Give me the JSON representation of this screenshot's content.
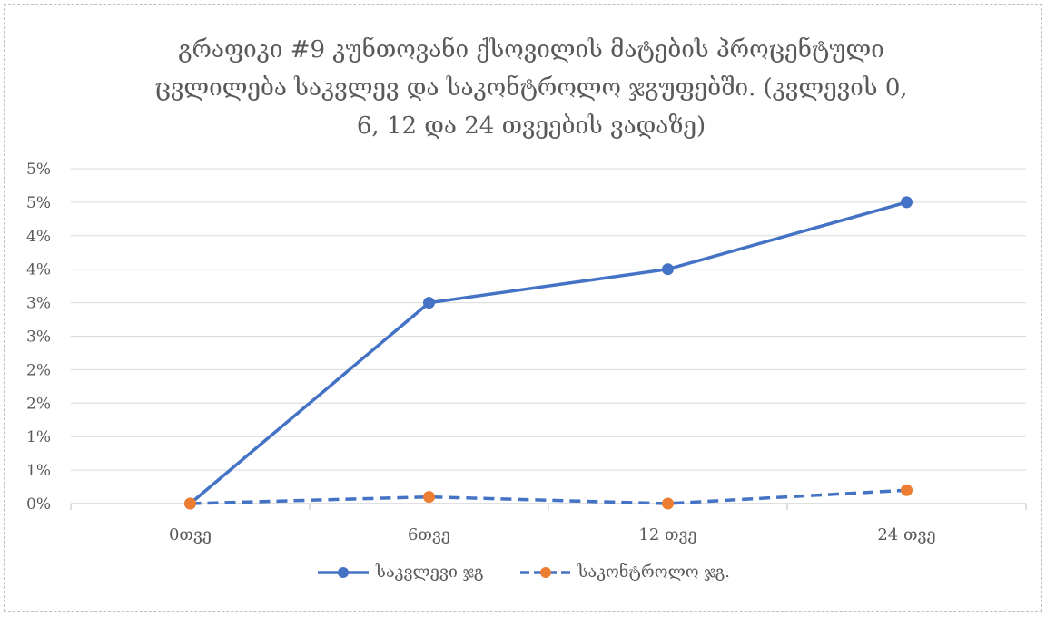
{
  "chart_data": {
    "type": "line",
    "title_lines": [
      "გრაფიკი #9 კუნთოვანი ქსოვილის მატების პროცენტული",
      "ცვლილება საკვლევ და საკონტროლო ჯგუფებში. (კვლევის 0,",
      "6, 12 და 24 თვეების ვადაზე)"
    ],
    "categories": [
      "0თვე",
      "6თვე",
      "12 თვე",
      "24 თვე"
    ],
    "y_tick_labels": [
      "0%",
      "1%",
      "1%",
      "2%",
      "2%",
      "3%",
      "3%",
      "4%",
      "4%",
      "5%",
      "5%"
    ],
    "ylim": [
      0,
      5
    ],
    "grid": true,
    "legend_position": "bottom",
    "series": [
      {
        "name": "საკვლევი ჯგ",
        "values": [
          0.0,
          3.0,
          3.5,
          4.5
        ],
        "color": "#4472C4",
        "line_style": "solid"
      },
      {
        "name": "საკონტროლო ჯგ.",
        "values": [
          0.0,
          0.1,
          0.0,
          0.2
        ],
        "color": "#ED7D31",
        "line_color": "#4472C4",
        "line_style": "dashed"
      }
    ]
  }
}
